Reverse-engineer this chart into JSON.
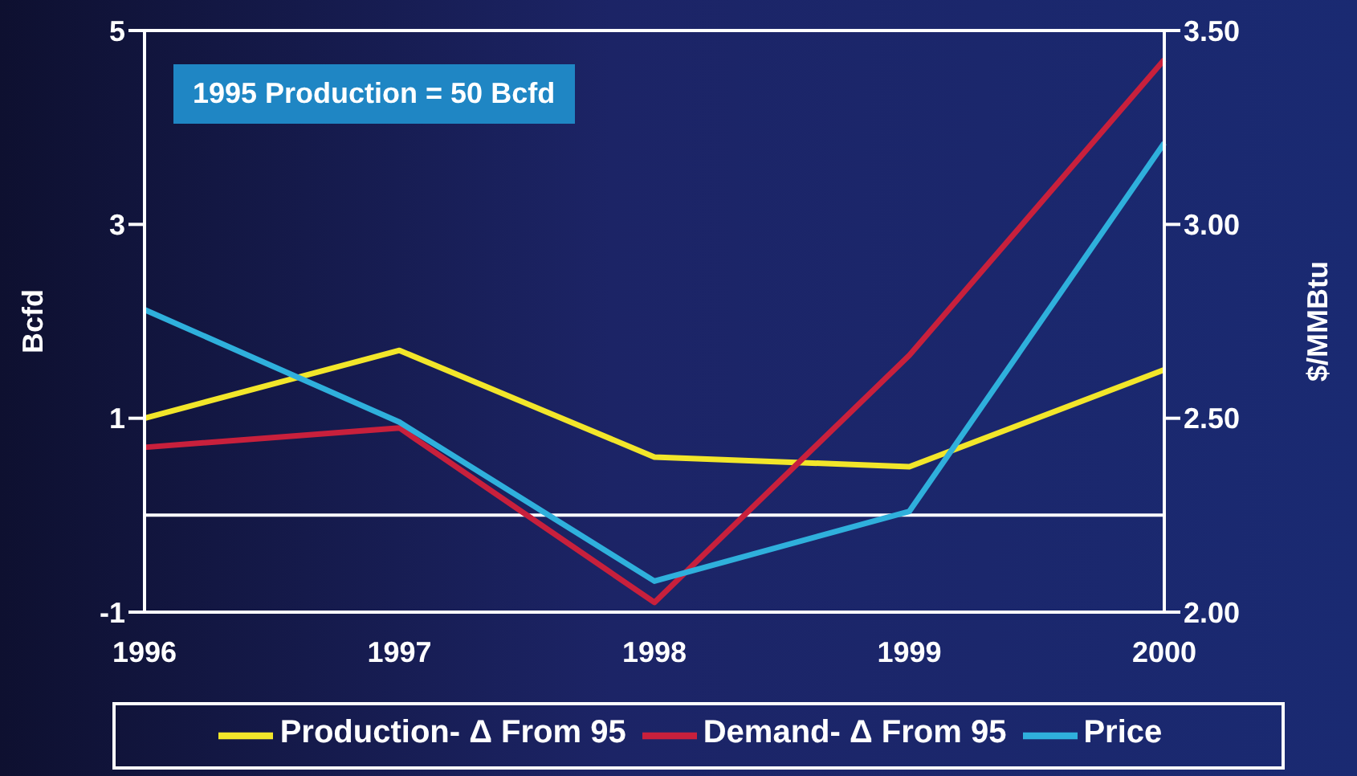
{
  "chart_data": {
    "type": "line",
    "categories": [
      "1996",
      "1997",
      "1998",
      "1999",
      "2000"
    ],
    "series": [
      {
        "name": "Production- Δ From 95",
        "color": "#f2e62a",
        "values": [
          1.0,
          1.7,
          0.6,
          0.5,
          1.5
        ]
      },
      {
        "name": "Demand- Δ From 95",
        "color": "#c8203c",
        "values": [
          0.7,
          0.9,
          -0.9,
          1.65,
          4.7
        ]
      },
      {
        "name": "Price",
        "color": "#2fb0dc",
        "axis": "y2",
        "values": [
          2.78,
          2.49,
          2.08,
          2.26,
          3.21
        ]
      }
    ],
    "ylabel": "Bcfd",
    "y2label": "$/MMBtu",
    "ylim": [
      -1,
      5
    ],
    "yticks": [
      -1,
      1,
      3,
      5
    ],
    "y2lim": [
      2,
      3.5
    ],
    "y2ticks": [
      {
        "value": 2,
        "label": "2.00"
      },
      {
        "value": 2.5,
        "label": "2.50"
      },
      {
        "value": 3,
        "label": "3.00"
      },
      {
        "value": 3.5,
        "label": "3.50"
      }
    ],
    "ref_lines": [
      {
        "axis": "y",
        "value": 0,
        "color": "#ffffff"
      }
    ],
    "annotations": [
      "1995 Production = 50 Bcfd"
    ],
    "legend": "bottom",
    "grid": false,
    "marker": "none",
    "line_style": "solid"
  }
}
